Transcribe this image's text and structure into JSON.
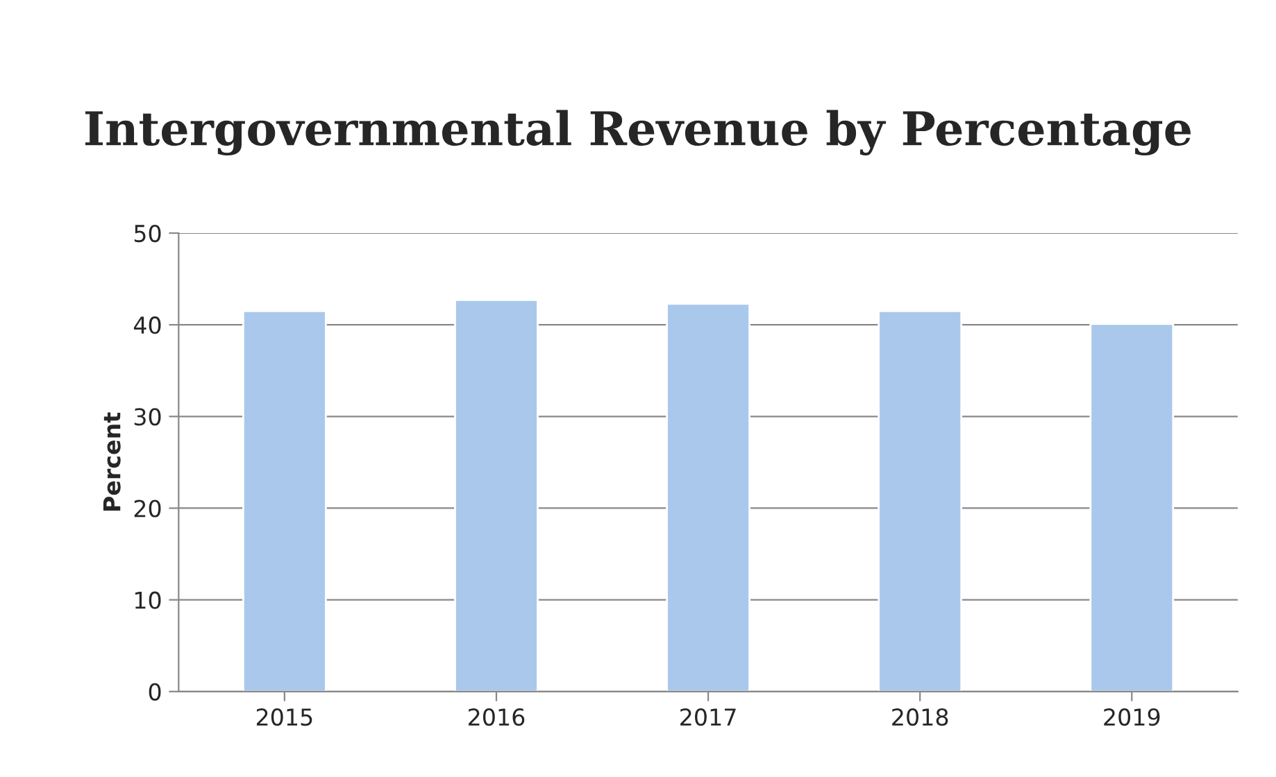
{
  "chart_data": {
    "type": "bar",
    "title": "Intergovernmental Revenue by Percentage",
    "ylabel": "Percent",
    "categories": [
      "2015",
      "2016",
      "2017",
      "2018",
      "2019"
    ],
    "values": [
      41.5,
      42.7,
      42.3,
      41.5,
      40.1
    ],
    "color": "#a9c8ec",
    "ylim": [
      0,
      50
    ],
    "yticks": [
      0,
      10,
      20,
      30,
      40,
      50
    ],
    "grid": "y"
  }
}
